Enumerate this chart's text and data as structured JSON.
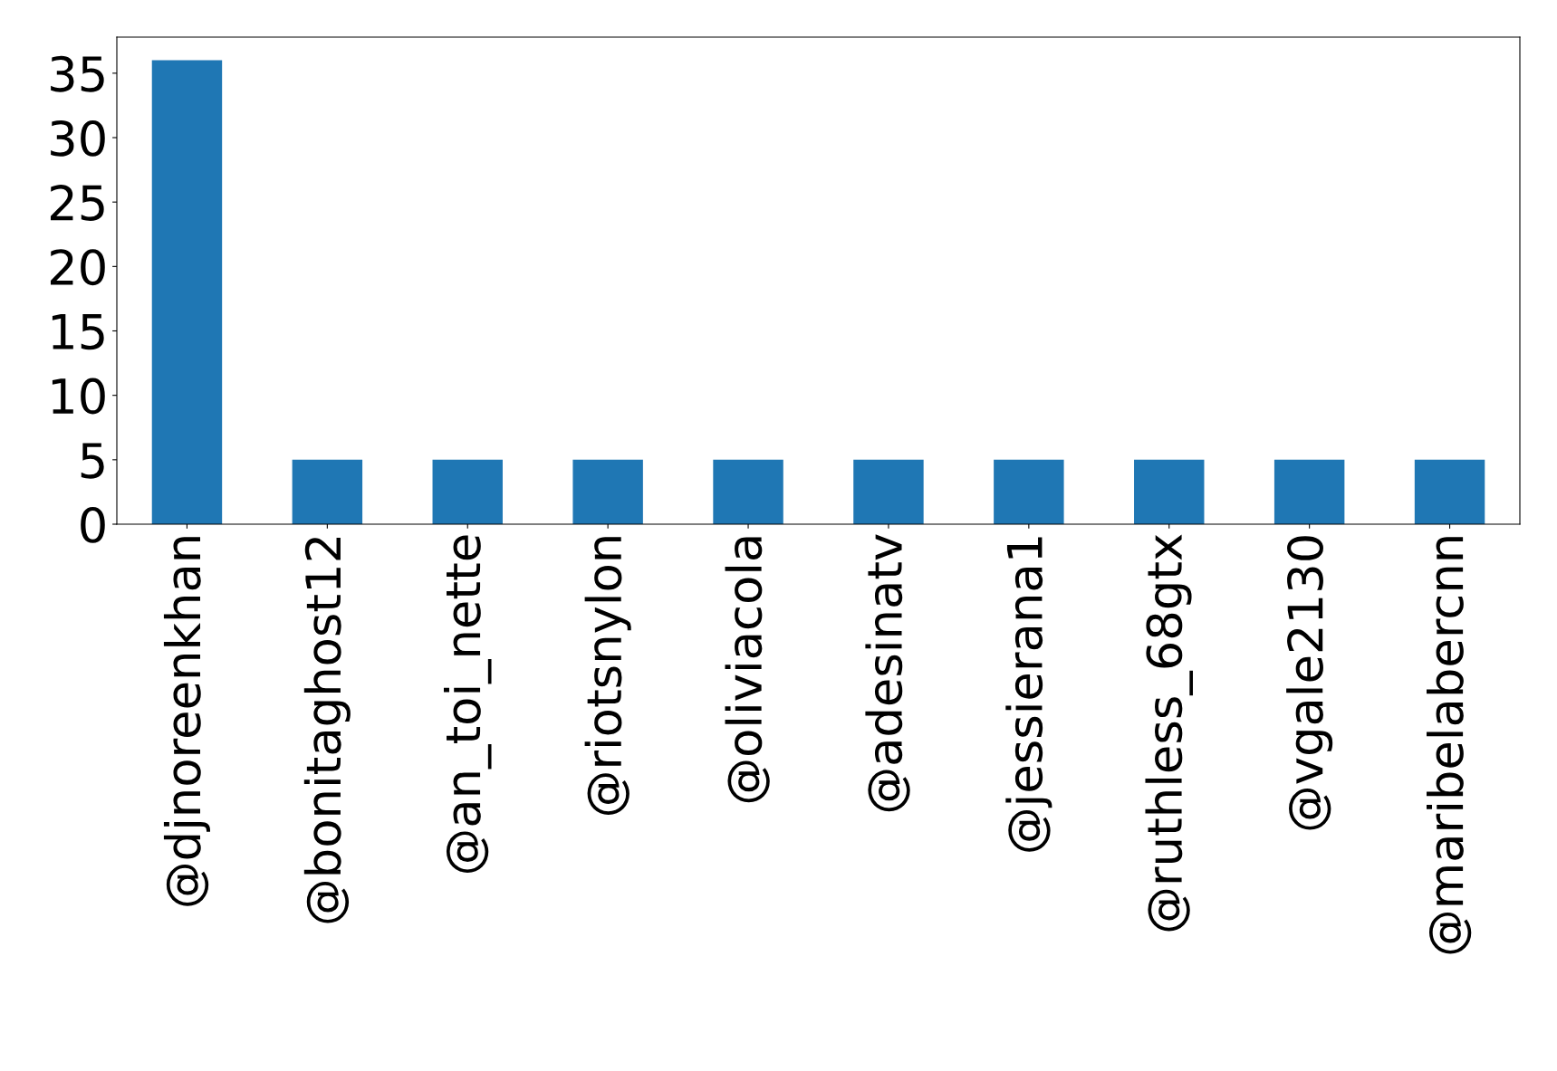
{
  "chart_data": {
    "type": "bar",
    "categories": [
      "@djnoreenkhan",
      "@bonitaghost12",
      "@an_toi_nette",
      "@riotsnylon",
      "@oliviacola",
      "@adesinatv",
      "@jessierana1",
      "@ruthless_68gtx",
      "@vgale2130",
      "@maribelabercnn"
    ],
    "values": [
      36,
      5,
      5,
      5,
      5,
      5,
      5,
      5,
      5,
      5
    ],
    "color": "#1f77b4",
    "ylim": [
      0,
      37.8
    ],
    "yticks": [
      0,
      5,
      10,
      15,
      20,
      25,
      30,
      35
    ],
    "grid": false,
    "legend": false
  }
}
